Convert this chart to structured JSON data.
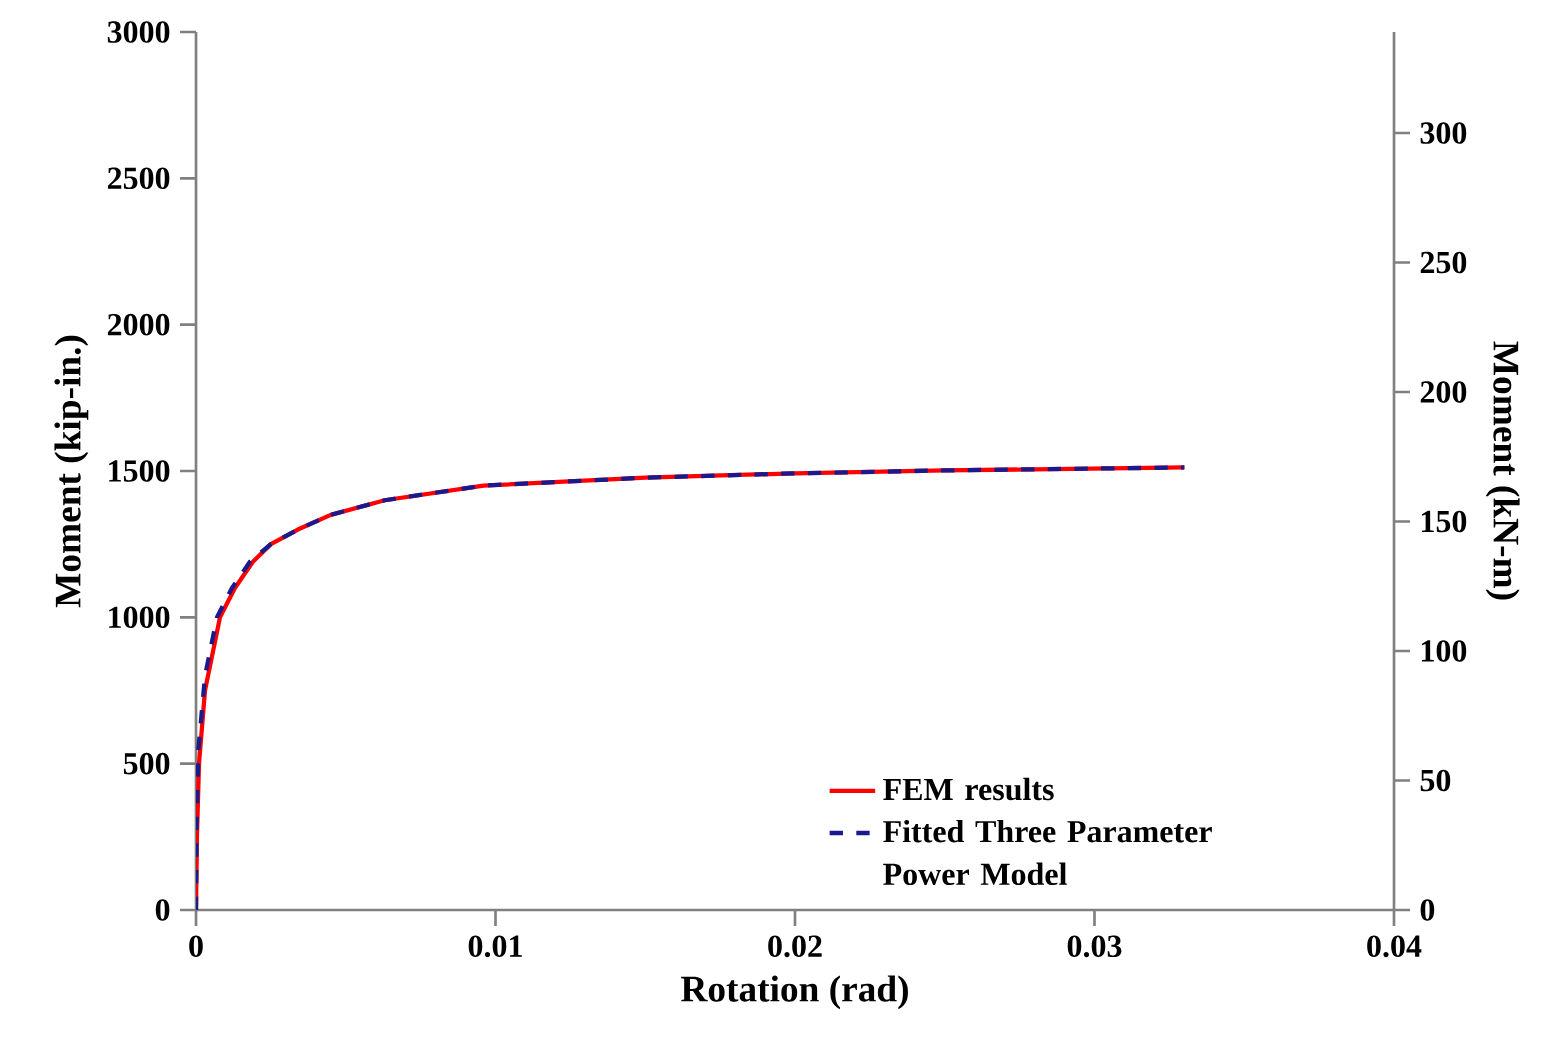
{
  "chart_data": {
    "type": "line",
    "xlabel": "Rotation (rad)",
    "ylabel": "Moment (kip-in.)",
    "y2label": "Moment (kN-m)",
    "xlim": [
      0,
      0.04
    ],
    "xticks": [
      0,
      0.01,
      0.02,
      0.03,
      0.04
    ],
    "ylim": [
      0,
      3000
    ],
    "yticks": [
      0,
      500,
      1000,
      1500,
      2000,
      2500,
      3000
    ],
    "y2lim": [
      0,
      339
    ],
    "y2ticks": [
      0,
      50,
      100,
      150,
      200,
      250,
      300
    ],
    "legend": "bottom right",
    "grid": false,
    "marker": "none",
    "series": [
      {
        "name": "FEM results",
        "color": "#ff0000",
        "line_style": "solid",
        "x": [
          0,
          3e-05,
          0.0001,
          0.0003,
          0.0008,
          0.0013,
          0.0019,
          0.0025,
          0.0034,
          0.0045,
          0.0063,
          0.0096,
          0.015,
          0.02,
          0.025,
          0.033
        ],
        "values": [
          0,
          250,
          500,
          750,
          1000,
          1100,
          1190,
          1250,
          1300,
          1350,
          1400,
          1450,
          1477,
          1492,
          1502,
          1512
        ]
      },
      {
        "name": "Fitted Three Parameter Power Model",
        "color": "#1a1a8c",
        "line_style": "dashed",
        "x": [
          0,
          2e-05,
          8e-05,
          0.0003,
          0.0007,
          0.0012,
          0.0018,
          0.0025,
          0.0034,
          0.0045,
          0.0063,
          0.0096,
          0.015,
          0.02,
          0.025,
          0.033
        ],
        "values": [
          0,
          300,
          550,
          800,
          1000,
          1100,
          1190,
          1250,
          1300,
          1350,
          1400,
          1450,
          1477,
          1492,
          1502,
          1512
        ]
      }
    ]
  }
}
